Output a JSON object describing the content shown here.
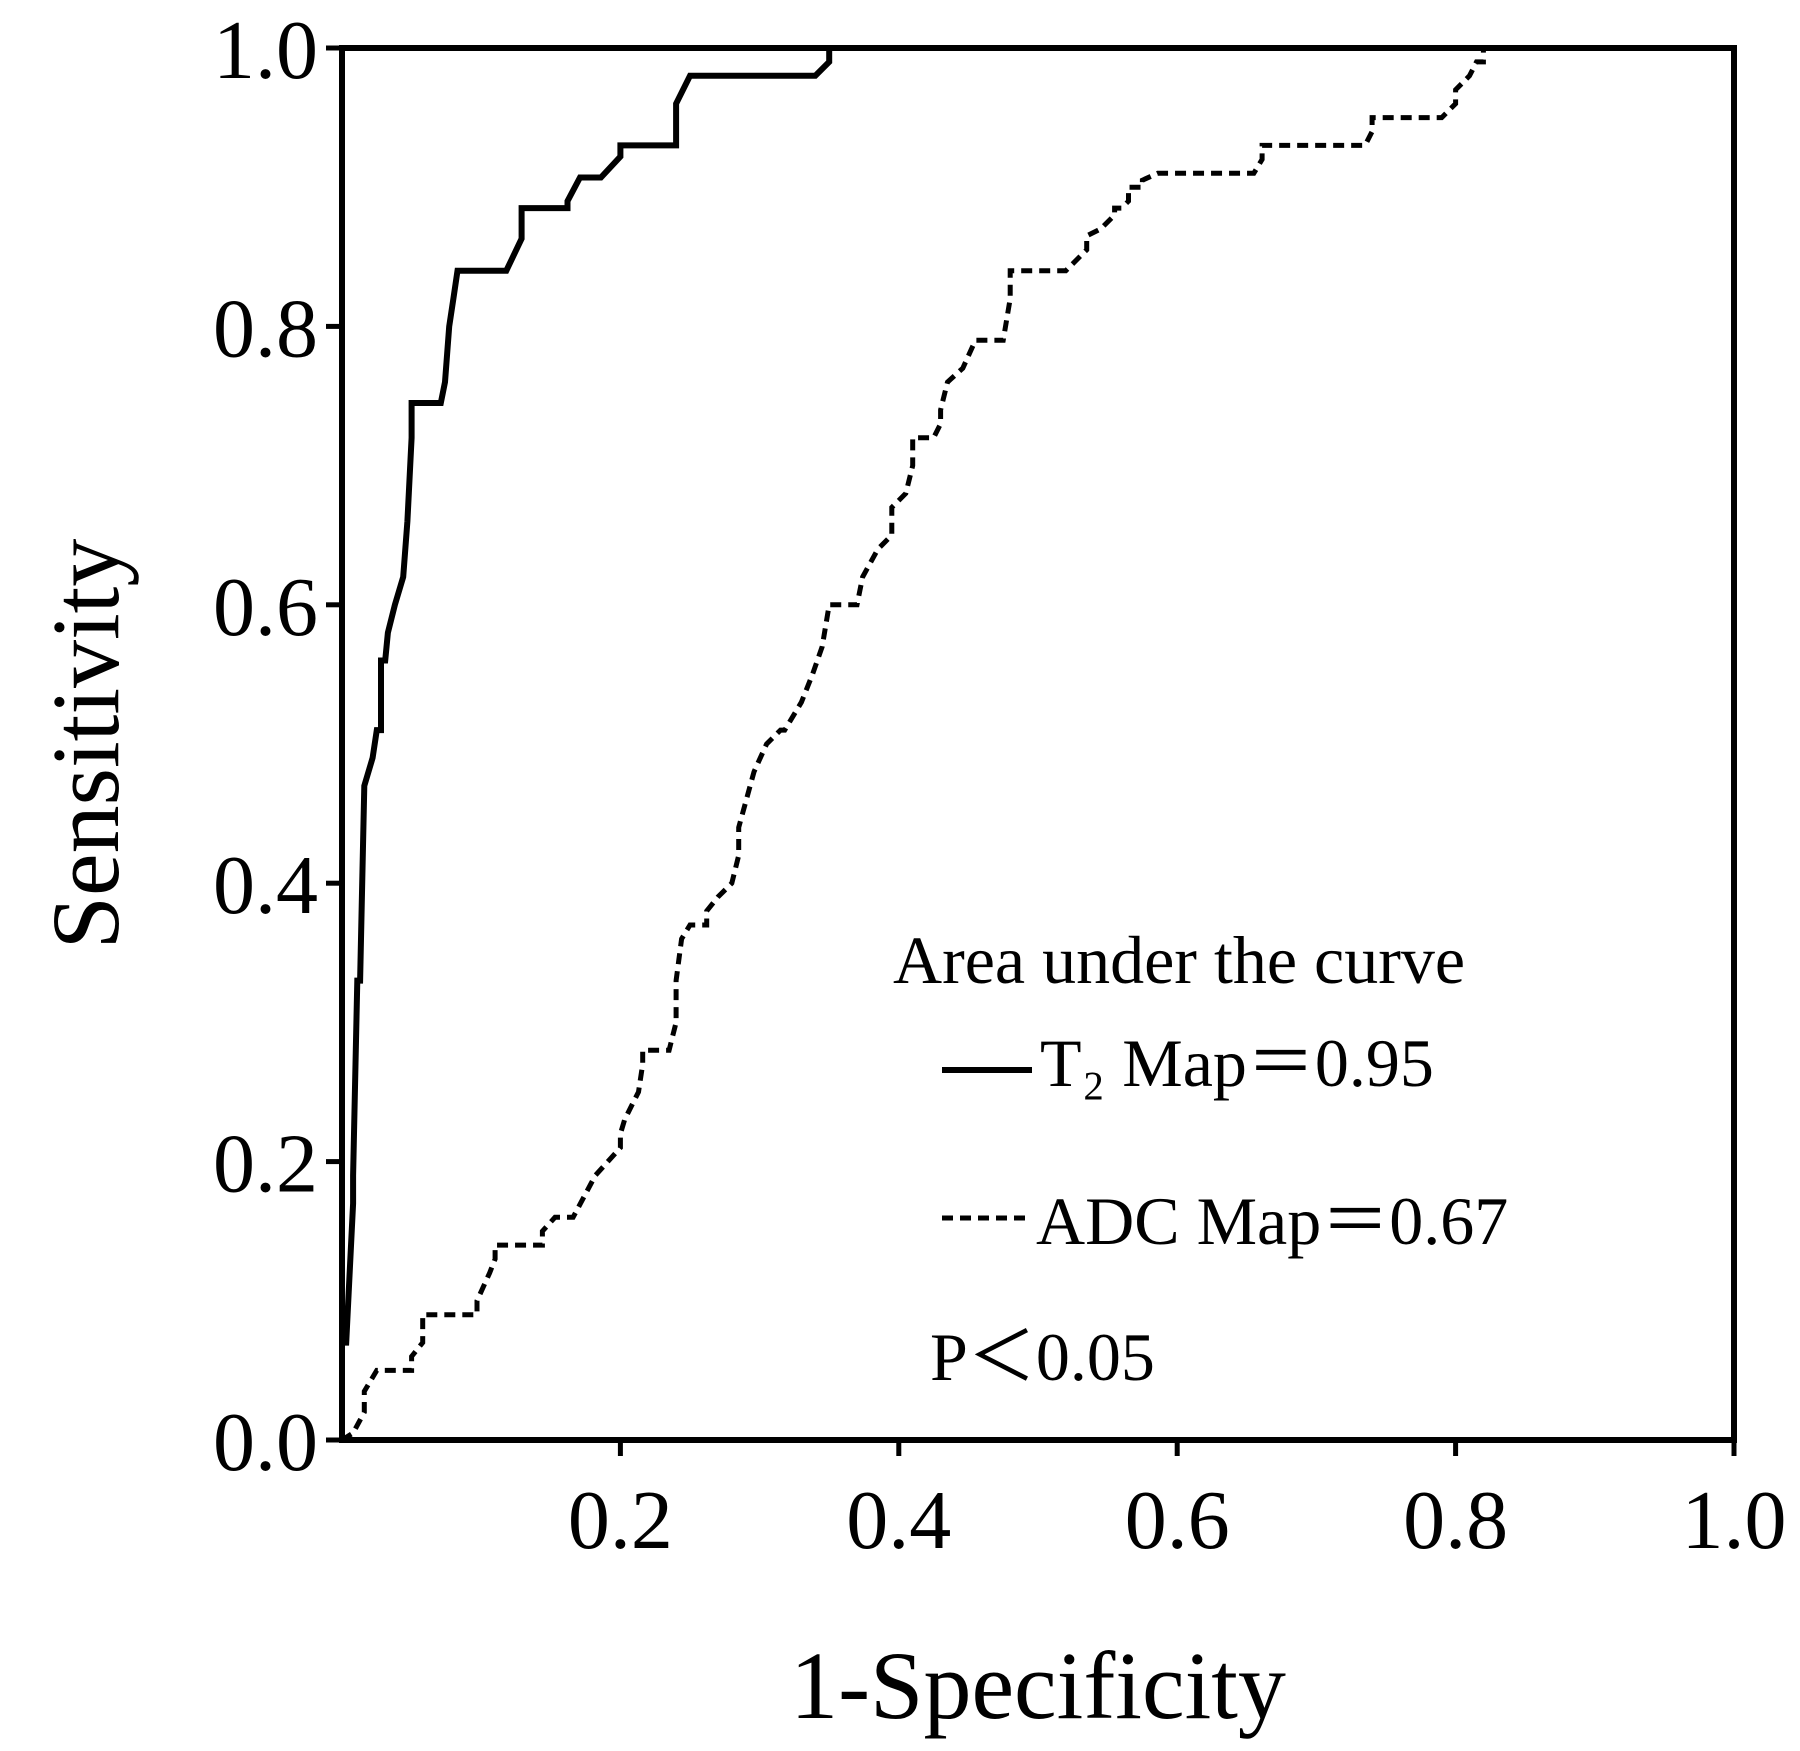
{
  "chart_data": {
    "type": "line",
    "xlabel": "1-Specificity",
    "ylabel": "Sensitivity",
    "xlim": [
      0.0,
      1.0
    ],
    "ylim": [
      0.0,
      1.0
    ],
    "x_ticks": [
      "0.2",
      "0.4",
      "0.6",
      "0.8",
      "1.0"
    ],
    "y_ticks": [
      "0.0",
      "0.2",
      "0.4",
      "0.6",
      "0.8",
      "1.0"
    ],
    "x_tick_values": [
      0.2,
      0.4,
      0.6,
      0.8,
      1.0
    ],
    "y_tick_values": [
      0.0,
      0.2,
      0.4,
      0.6,
      0.8,
      1.0
    ],
    "grid": false,
    "legend": {
      "position": "bottom-right",
      "header": "Area under the curve",
      "note": "P＜0.05"
    },
    "series": [
      {
        "name": "T₂ Map＝0.95",
        "style": "solid",
        "color": "#000000",
        "x": [
          0.0,
          0.0,
          0.003,
          0.008,
          0.008,
          0.011,
          0.013,
          0.016,
          0.016,
          0.022,
          0.025,
          0.028,
          0.028,
          0.031,
          0.033,
          0.038,
          0.044,
          0.047,
          0.05,
          0.05,
          0.058,
          0.071,
          0.074,
          0.077,
          0.08,
          0.083,
          0.096,
          0.118,
          0.129,
          0.129,
          0.143,
          0.162,
          0.162,
          0.171,
          0.186,
          0.2,
          0.2,
          0.24,
          0.24,
          0.25,
          0.25,
          0.34,
          0.35,
          0.35,
          1.0
        ],
        "y": [
          0.0,
          0.07,
          0.07,
          0.17,
          0.19,
          0.33,
          0.33,
          0.47,
          0.47,
          0.49,
          0.51,
          0.51,
          0.56,
          0.56,
          0.58,
          0.6,
          0.62,
          0.66,
          0.72,
          0.745,
          0.745,
          0.745,
          0.76,
          0.8,
          0.82,
          0.84,
          0.84,
          0.84,
          0.863,
          0.885,
          0.885,
          0.885,
          0.89,
          0.907,
          0.907,
          0.922,
          0.93,
          0.93,
          0.96,
          0.98,
          0.98,
          0.98,
          0.99,
          1.0,
          1.0
        ]
      },
      {
        "name": "ADC Map＝0.67",
        "style": "dashed",
        "color": "#000000",
        "x": [
          0.0,
          0.008,
          0.016,
          0.016,
          0.025,
          0.05,
          0.05,
          0.058,
          0.058,
          0.097,
          0.097,
          0.106,
          0.11,
          0.11,
          0.144,
          0.144,
          0.153,
          0.166,
          0.182,
          0.2,
          0.2,
          0.203,
          0.208,
          0.213,
          0.216,
          0.216,
          0.235,
          0.24,
          0.24,
          0.244,
          0.25,
          0.262,
          0.262,
          0.27,
          0.28,
          0.285,
          0.285,
          0.296,
          0.305,
          0.315,
          0.318,
          0.33,
          0.338,
          0.345,
          0.35,
          0.37,
          0.374,
          0.385,
          0.395,
          0.395,
          0.405,
          0.41,
          0.41,
          0.425,
          0.43,
          0.43,
          0.435,
          0.446,
          0.455,
          0.455,
          0.47,
          0.475,
          0.48,
          0.48,
          0.5,
          0.52,
          0.535,
          0.535,
          0.545,
          0.555,
          0.555,
          0.56,
          0.565,
          0.565,
          0.575,
          0.575,
          0.586,
          0.593,
          0.593,
          0.655,
          0.661,
          0.661,
          0.735,
          0.74,
          0.74,
          0.76,
          0.79,
          0.8,
          0.8,
          0.81,
          0.815,
          0.82,
          0.82,
          1.0
        ],
        "y": [
          0.0,
          0.005,
          0.02,
          0.035,
          0.05,
          0.05,
          0.06,
          0.07,
          0.09,
          0.09,
          0.1,
          0.12,
          0.13,
          0.14,
          0.14,
          0.15,
          0.16,
          0.16,
          0.19,
          0.21,
          0.22,
          0.23,
          0.24,
          0.25,
          0.27,
          0.28,
          0.28,
          0.3,
          0.33,
          0.36,
          0.37,
          0.37,
          0.38,
          0.39,
          0.4,
          0.42,
          0.44,
          0.48,
          0.5,
          0.51,
          0.51,
          0.53,
          0.55,
          0.57,
          0.6,
          0.6,
          0.62,
          0.64,
          0.65,
          0.67,
          0.68,
          0.7,
          0.72,
          0.72,
          0.73,
          0.74,
          0.76,
          0.77,
          0.79,
          0.79,
          0.79,
          0.79,
          0.82,
          0.84,
          0.84,
          0.84,
          0.855,
          0.865,
          0.87,
          0.88,
          0.885,
          0.885,
          0.89,
          0.9,
          0.9,
          0.905,
          0.91,
          0.91,
          0.91,
          0.91,
          0.92,
          0.93,
          0.93,
          0.94,
          0.95,
          0.95,
          0.95,
          0.96,
          0.97,
          0.98,
          0.99,
          0.99,
          1.0,
          1.0
        ]
      }
    ]
  }
}
